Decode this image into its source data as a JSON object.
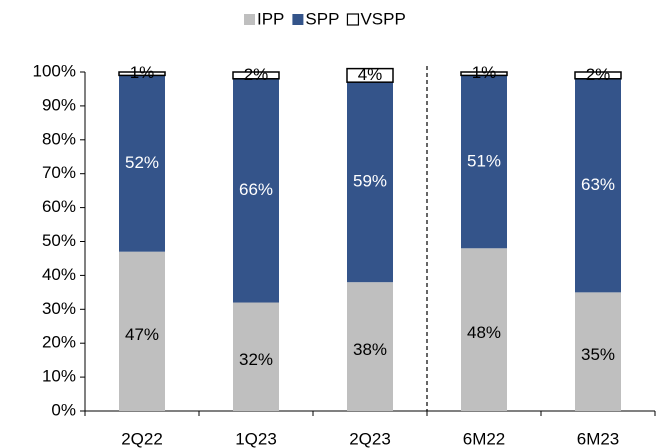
{
  "chart_data": {
    "type": "stacked_bar",
    "categories": [
      "2Q22",
      "1Q23",
      "2Q23",
      "6M22",
      "6M23"
    ],
    "series": [
      {
        "name": "IPP",
        "color": "#bfbfbf",
        "values": [
          47,
          32,
          38,
          48,
          35
        ],
        "value_labels": [
          "47%",
          "32%",
          "38%",
          "48%",
          "35%"
        ]
      },
      {
        "name": "SPP",
        "color": "#34548a",
        "values": [
          52,
          66,
          59,
          51,
          63
        ],
        "value_labels": [
          "52%",
          "66%",
          "59%",
          "51%",
          "63%"
        ]
      },
      {
        "name": "VSPP",
        "color": "#ffffff",
        "values": [
          1,
          2,
          4,
          1,
          2
        ],
        "value_labels": [
          "1%",
          "2%",
          "4%",
          "1%",
          "2%"
        ]
      }
    ],
    "ylim": [
      0,
      100
    ],
    "yticks": [
      {
        "value": 0,
        "label": "0%"
      },
      {
        "value": 10,
        "label": "10%"
      },
      {
        "value": 20,
        "label": "20%"
      },
      {
        "value": 30,
        "label": "30%"
      },
      {
        "value": 40,
        "label": "40%"
      },
      {
        "value": 50,
        "label": "50%"
      },
      {
        "value": 60,
        "label": "60%"
      },
      {
        "value": 70,
        "label": "70%"
      },
      {
        "value": 80,
        "label": "80%"
      },
      {
        "value": 90,
        "label": "90%"
      },
      {
        "value": 100,
        "label": "100%"
      }
    ],
    "legend": "top"
  }
}
